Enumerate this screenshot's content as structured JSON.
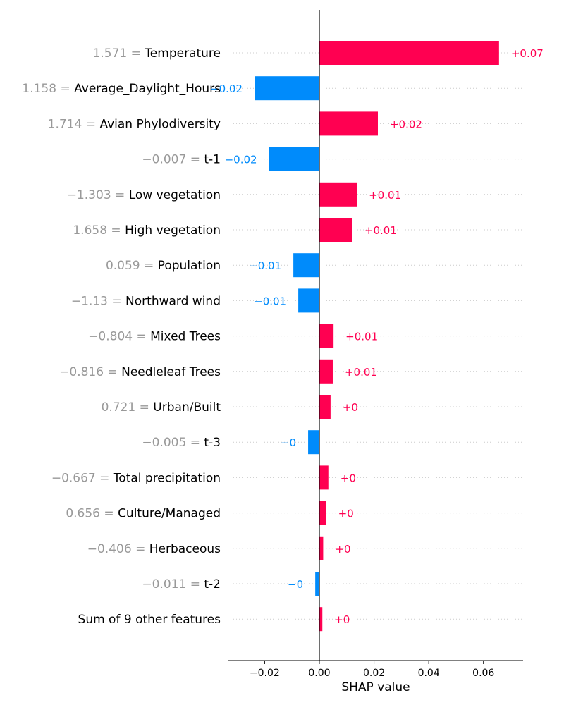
{
  "chart_data": {
    "type": "bar",
    "orientation": "horizontal",
    "xlabel": "SHAP value",
    "xlim": [
      -0.0335,
      0.0745
    ],
    "xticks": [
      -0.02,
      0.0,
      0.02,
      0.04,
      0.06
    ],
    "xtick_labels": [
      "−0.02",
      "0.00",
      "0.02",
      "0.04",
      "0.06"
    ],
    "positive_color": "#ff0051",
    "negative_color": "#008bfb",
    "rows": [
      {
        "value": "1.571",
        "feature": "Temperature",
        "shap": 0.0657,
        "label": "+0.07"
      },
      {
        "value": "1.158",
        "feature": "Average_Daylight_Hours",
        "shap": -0.0237,
        "label": "−0.02"
      },
      {
        "value": "1.714",
        "feature": "Avian Phylodiversity",
        "shap": 0.0214,
        "label": "+0.02"
      },
      {
        "value": "−0.007",
        "feature": "t-1",
        "shap": -0.0184,
        "label": "−0.02"
      },
      {
        "value": "−1.303",
        "feature": "Low vegetation",
        "shap": 0.0137,
        "label": "+0.01"
      },
      {
        "value": "1.658",
        "feature": "High vegetation",
        "shap": 0.0121,
        "label": "+0.01"
      },
      {
        "value": "0.059",
        "feature": "Population",
        "shap": -0.0095,
        "label": "−0.01"
      },
      {
        "value": "−1.13",
        "feature": "Northward wind",
        "shap": -0.0077,
        "label": "−0.01"
      },
      {
        "value": "−0.804",
        "feature": "Mixed Trees",
        "shap": 0.0052,
        "label": "+0.01"
      },
      {
        "value": "−0.816",
        "feature": "Needleleaf Trees",
        "shap": 0.0049,
        "label": "+0.01"
      },
      {
        "value": "0.721",
        "feature": "Urban/Built",
        "shap": 0.0041,
        "label": "+0"
      },
      {
        "value": "−0.005",
        "feature": "t-3",
        "shap": -0.0041,
        "label": "−0"
      },
      {
        "value": "−0.667",
        "feature": "Total precipitation",
        "shap": 0.0033,
        "label": "+0"
      },
      {
        "value": "0.656",
        "feature": "Culture/Managed",
        "shap": 0.0025,
        "label": "+0"
      },
      {
        "value": "−0.406",
        "feature": "Herbaceous",
        "shap": 0.0014,
        "label": "+0"
      },
      {
        "value": "−0.011",
        "feature": "t-2",
        "shap": -0.0015,
        "label": "−0"
      },
      {
        "value": "",
        "feature": "Sum of 9 other features",
        "shap": 0.0011,
        "label": "+0"
      }
    ]
  }
}
